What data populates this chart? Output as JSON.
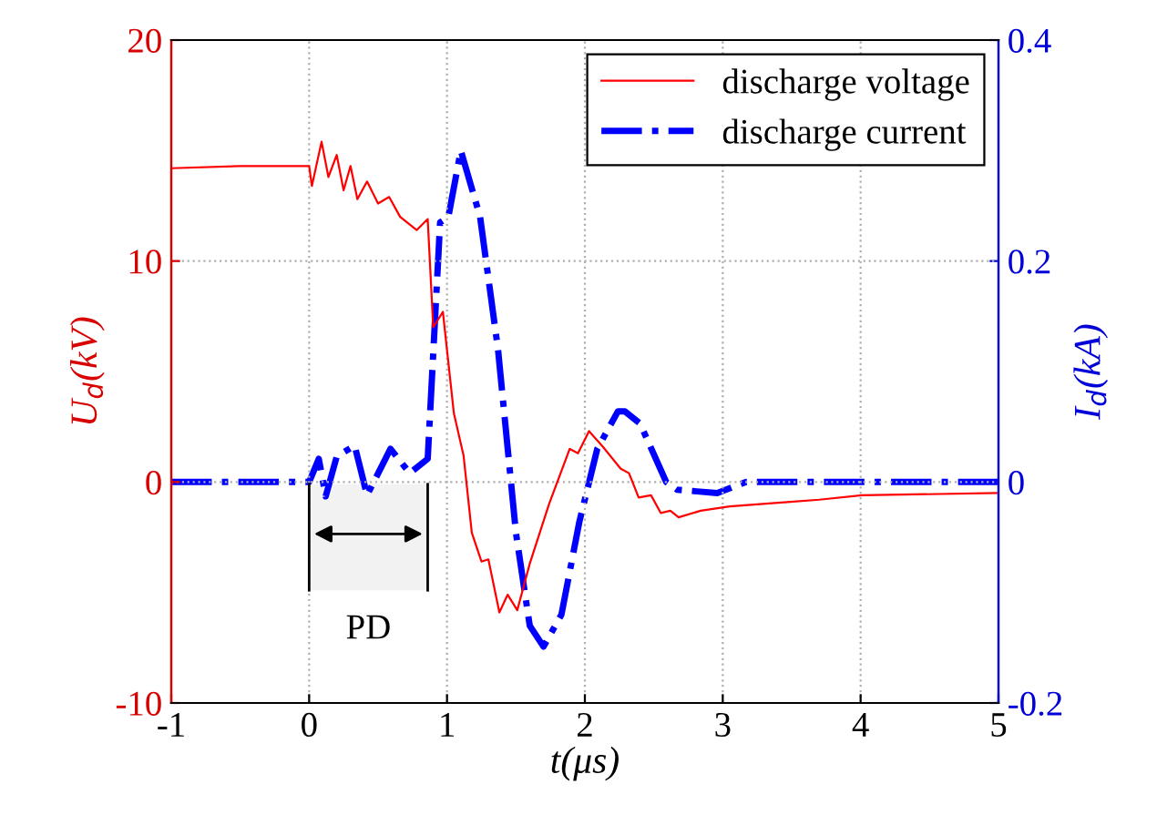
{
  "chart_data": {
    "type": "line",
    "xlabel": "t(μs)",
    "ylabel": "U$_{d}$(kV)",
    "y2label": "I$_{d}$(kA)",
    "xlim": [
      -1,
      5
    ],
    "xticks": [
      -1,
      0,
      1,
      2,
      3,
      4,
      5
    ],
    "ylim": [
      -10,
      20
    ],
    "yticks": [
      -10,
      0,
      10,
      20
    ],
    "y2lim": [
      -0.2,
      0.4
    ],
    "y2ticks": [
      -0.2,
      0,
      0.2,
      0.4
    ],
    "grid": true,
    "legend": "top right",
    "marker": "none",
    "bands": [
      {
        "axis": "x",
        "from": 0,
        "to": 0.86,
        "label": "PD",
        "color": "#f2f2f2"
      }
    ],
    "series": [
      {
        "name": "discharge voltage",
        "color": "#ff0000",
        "line_style": "solid",
        "x": [
          -1,
          -0.5,
          0,
          0.02,
          0.09,
          0.14,
          0.2,
          0.25,
          0.3,
          0.35,
          0.42,
          0.5,
          0.58,
          0.66,
          0.78,
          0.86,
          0.9,
          0.97,
          1.05,
          1.12,
          1.18,
          1.25,
          1.3,
          1.38,
          1.44,
          1.51,
          1.6,
          1.74,
          1.89,
          1.95,
          2.03,
          2.13,
          2.26,
          2.32,
          2.39,
          2.48,
          2.55,
          2.62,
          2.68,
          2.84,
          3.05,
          3.49,
          3.7,
          4.01,
          5
        ],
        "values": [
          14.2,
          14.3,
          14.3,
          13.4,
          15.4,
          13.8,
          14.8,
          13.2,
          14.3,
          12.8,
          13.6,
          12.6,
          12.9,
          12.0,
          11.4,
          11.9,
          7.0,
          7.7,
          3.1,
          1.2,
          -2.3,
          -3.6,
          -3.5,
          -5.9,
          -5.1,
          -5.8,
          -3.7,
          -1.0,
          1.5,
          1.3,
          2.3,
          1.6,
          0.6,
          0.4,
          -0.7,
          -0.6,
          -1.4,
          -1.3,
          -1.6,
          -1.3,
          -1.1,
          -0.9,
          -0.8,
          -0.6,
          -0.5
        ]
      },
      {
        "name": "discharge current",
        "color": "#0000ff",
        "line_style": "dashdot",
        "axis": "y2",
        "x": [
          -1,
          -0.5,
          0,
          0.07,
          0.12,
          0.2,
          0.33,
          0.42,
          0.59,
          0.73,
          0.86,
          0.95,
          1.01,
          1.1,
          1.24,
          1.37,
          1.5,
          1.6,
          1.7,
          1.83,
          1.96,
          2.09,
          2.24,
          2.29,
          2.4,
          2.59,
          2.67,
          2.96,
          3.17,
          3.7,
          5
        ],
        "values": [
          0,
          0,
          0,
          0.021,
          -0.013,
          0.023,
          0.033,
          -0.012,
          0.03,
          0.008,
          0.021,
          0.235,
          0.24,
          0.3,
          0.24,
          0.12,
          -0.046,
          -0.13,
          -0.149,
          -0.12,
          -0.036,
          0.03,
          0.064,
          0.064,
          0.053,
          0,
          -0.007,
          -0.01,
          0,
          0,
          0
        ]
      }
    ]
  }
}
